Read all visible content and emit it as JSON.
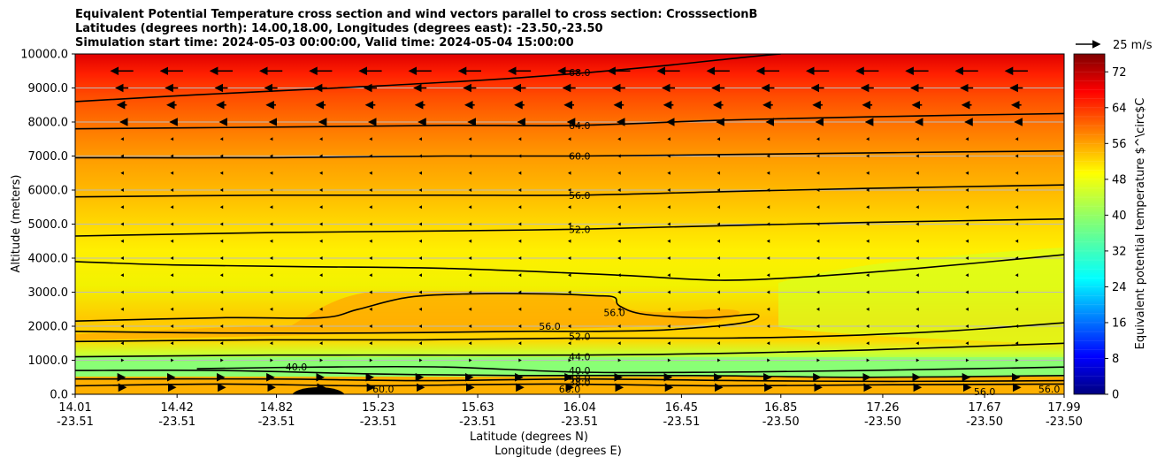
{
  "chart_data": {
    "type": "heatmap",
    "title_lines": [
      "Equivalent Potential Temperature cross section and wind vectors parallel to cross section: CrosssectionB",
      "Latitudes (degrees north): 14.00,18.00, Longitudes (degrees east): -23.50,-23.50",
      "Simulation start time: 2024-05-03 00:00:00, Valid time: 2024-05-04 15:00:00"
    ],
    "xlabel_lat": "Latitude (degrees N)",
    "xlabel_lon": "Longitude (degrees E)",
    "ylabel": "Altitude (meters)",
    "xlim": [
      14.01,
      17.99
    ],
    "ylim": [
      0,
      10000
    ],
    "x_ticks": [
      {
        "x": 14.01,
        "lat": "14.01",
        "lon": "-23.51"
      },
      {
        "x": 14.42,
        "lat": "14.42",
        "lon": "-23.51"
      },
      {
        "x": 14.82,
        "lat": "14.82",
        "lon": "-23.51"
      },
      {
        "x": 15.23,
        "lat": "15.23",
        "lon": "-23.51"
      },
      {
        "x": 15.63,
        "lat": "15.63",
        "lon": "-23.51"
      },
      {
        "x": 16.04,
        "lat": "16.04",
        "lon": "-23.51"
      },
      {
        "x": 16.45,
        "lat": "16.45",
        "lon": "-23.51"
      },
      {
        "x": 16.85,
        "lat": "16.85",
        "lon": "-23.50"
      },
      {
        "x": 17.26,
        "lat": "17.26",
        "lon": "-23.50"
      },
      {
        "x": 17.67,
        "lat": "17.67",
        "lon": "-23.50"
      },
      {
        "x": 17.99,
        "lat": "17.99",
        "lon": "-23.50"
      }
    ],
    "y_ticks": [
      {
        "v": 0,
        "label": "0.0"
      },
      {
        "v": 1000,
        "label": "1000.0"
      },
      {
        "v": 2000,
        "label": "2000.0"
      },
      {
        "v": 3000,
        "label": "3000.0"
      },
      {
        "v": 4000,
        "label": "4000.0"
      },
      {
        "v": 5000,
        "label": "5000.0"
      },
      {
        "v": 6000,
        "label": "6000.0"
      },
      {
        "v": 7000,
        "label": "7000.0"
      },
      {
        "v": 8000,
        "label": "8000.0"
      },
      {
        "v": 9000,
        "label": "9000.0"
      },
      {
        "v": 10000,
        "label": "10000.0"
      }
    ],
    "grid": "horizontal",
    "colorbar": {
      "label": "Equivalent potential temperature $^\\circ$C",
      "min": 0,
      "max": 76,
      "ticks": [
        0,
        8,
        16,
        24,
        32,
        40,
        48,
        56,
        64,
        72
      ],
      "colormap": "jet",
      "levels": 38
    },
    "wind_key": {
      "label": "25 m/s",
      "speed": 25
    },
    "contours": [
      {
        "level": "68.0",
        "label": "68.0",
        "points": [
          [
            14.01,
            8600
          ],
          [
            14.5,
            8800
          ],
          [
            15.2,
            9050
          ],
          [
            15.8,
            9300
          ],
          [
            16.3,
            9600
          ],
          [
            16.7,
            9900
          ],
          [
            16.85,
            10000
          ]
        ]
      },
      {
        "level": "64.0",
        "label": "64.0",
        "points": [
          [
            14.01,
            7800
          ],
          [
            14.8,
            7850
          ],
          [
            15.5,
            7900
          ],
          [
            16.04,
            7900
          ],
          [
            16.6,
            8050
          ],
          [
            17.2,
            8150
          ],
          [
            17.99,
            8250
          ]
        ]
      },
      {
        "level": "60.0",
        "label": "60.0",
        "points": [
          [
            14.01,
            6950
          ],
          [
            14.8,
            6950
          ],
          [
            15.5,
            7000
          ],
          [
            16.04,
            7000
          ],
          [
            16.7,
            7050
          ],
          [
            17.3,
            7100
          ],
          [
            17.99,
            7150
          ]
        ]
      },
      {
        "level": "56.0",
        "label": "56.0",
        "points": [
          [
            14.01,
            5800
          ],
          [
            14.8,
            5850
          ],
          [
            15.5,
            5850
          ],
          [
            16.04,
            5850
          ],
          [
            16.6,
            5950
          ],
          [
            17.2,
            6050
          ],
          [
            17.99,
            6150
          ]
        ]
      },
      {
        "level": "52.0",
        "label": "52.0",
        "points": [
          [
            14.01,
            4650
          ],
          [
            14.8,
            4750
          ],
          [
            15.5,
            4800
          ],
          [
            16.04,
            4850
          ],
          [
            16.6,
            4950
          ],
          [
            17.2,
            5050
          ],
          [
            17.99,
            5150
          ]
        ]
      },
      {
        "level": "48.0",
        "label": "",
        "points": [
          [
            14.01,
            3900
          ],
          [
            14.4,
            3800
          ],
          [
            14.9,
            3750
          ],
          [
            15.5,
            3700
          ],
          [
            16.2,
            3500
          ],
          [
            16.6,
            3350
          ],
          [
            16.95,
            3450
          ],
          [
            17.4,
            3700
          ],
          [
            17.99,
            4100
          ]
        ]
      },
      {
        "level": "56.0",
        "label": "56.0",
        "points": [
          [
            14.01,
            2150
          ],
          [
            14.6,
            2250
          ],
          [
            15.0,
            2250
          ],
          [
            15.15,
            2500
          ],
          [
            15.35,
            2850
          ],
          [
            15.6,
            2950
          ],
          [
            15.9,
            2950
          ],
          [
            16.1,
            2900
          ],
          [
            16.18,
            2850
          ],
          [
            16.2,
            2600
          ],
          [
            16.3,
            2350
          ],
          [
            16.55,
            2250
          ],
          [
            16.75,
            2350
          ],
          [
            16.7,
            2100
          ],
          [
            16.4,
            1900
          ],
          [
            16.1,
            1850
          ],
          [
            15.8,
            1850
          ],
          [
            15.2,
            1800
          ],
          [
            14.6,
            1800
          ],
          [
            14.01,
            1850
          ]
        ]
      },
      {
        "level": "52.0",
        "label": "52.0",
        "points": [
          [
            14.01,
            1550
          ],
          [
            14.8,
            1600
          ],
          [
            15.4,
            1600
          ],
          [
            16.04,
            1650
          ],
          [
            16.6,
            1650
          ],
          [
            17.0,
            1700
          ],
          [
            17.5,
            1850
          ],
          [
            17.99,
            2100
          ]
        ]
      },
      {
        "level": "44.0",
        "label": "44.0",
        "points": [
          [
            14.01,
            1100
          ],
          [
            14.8,
            1150
          ],
          [
            15.4,
            1150
          ],
          [
            16.04,
            1150
          ],
          [
            16.6,
            1200
          ],
          [
            17.2,
            1300
          ],
          [
            17.99,
            1500
          ]
        ]
      },
      {
        "level": "40.0",
        "label": "40.0",
        "points": [
          [
            14.5,
            750
          ],
          [
            15.0,
            800
          ],
          [
            15.5,
            800
          ],
          [
            16.04,
            650
          ],
          [
            16.6,
            650
          ],
          [
            17.2,
            700
          ],
          [
            17.99,
            800
          ]
        ]
      },
      {
        "level": "40.0",
        "label": "40.0",
        "points": [
          [
            14.01,
            700
          ],
          [
            14.6,
            700
          ],
          [
            15.2,
            600
          ],
          [
            15.8,
            550
          ],
          [
            16.5,
            550
          ],
          [
            17.2,
            500
          ],
          [
            17.99,
            550
          ]
        ]
      },
      {
        "level": "48.0",
        "label": "48.0",
        "points": [
          [
            14.01,
            450
          ],
          [
            14.8,
            450
          ],
          [
            15.4,
            400
          ],
          [
            16.04,
            450
          ],
          [
            16.7,
            400
          ],
          [
            17.3,
            380
          ],
          [
            17.99,
            400
          ]
        ]
      },
      {
        "level": "56.0",
        "label": "56.0",
        "points": [
          [
            14.01,
            250
          ],
          [
            14.6,
            300
          ],
          [
            15.2,
            250
          ],
          [
            15.9,
            300
          ],
          [
            16.6,
            250
          ],
          [
            17.3,
            280
          ],
          [
            17.99,
            300
          ]
        ]
      }
    ],
    "contour_labels": [
      {
        "text": "68.0",
        "x": 16.04,
        "y": 9450
      },
      {
        "text": "64.0",
        "x": 16.04,
        "y": 7900
      },
      {
        "text": "60.0",
        "x": 16.04,
        "y": 7000
      },
      {
        "text": "56.0",
        "x": 16.04,
        "y": 5850
      },
      {
        "text": "52.0",
        "x": 16.04,
        "y": 4850
      },
      {
        "text": "56.0",
        "x": 16.18,
        "y": 2400
      },
      {
        "text": "56.0",
        "x": 15.92,
        "y": 2000
      },
      {
        "text": "52.0",
        "x": 16.04,
        "y": 1700
      },
      {
        "text": "44.0",
        "x": 16.04,
        "y": 1100
      },
      {
        "text": "40.0",
        "x": 14.9,
        "y": 800
      },
      {
        "text": "40.0",
        "x": 16.04,
        "y": 700
      },
      {
        "text": "48.0",
        "x": 16.04,
        "y": 480
      },
      {
        "text": "38.0",
        "x": 16.04,
        "y": 350
      },
      {
        "text": "60.0",
        "x": 16.0,
        "y": 150
      },
      {
        "text": "60.0",
        "x": 15.25,
        "y": 150
      },
      {
        "text": "56.0",
        "x": 17.67,
        "y": 80
      },
      {
        "text": "56.0",
        "x": 17.93,
        "y": 150
      }
    ],
    "wind_rows_m": [
      9500,
      9000,
      8500,
      8000,
      7500,
      7000,
      6500,
      6000,
      5500,
      5000,
      4500,
      4000,
      3500,
      3000,
      2500,
      2000,
      1500,
      1000,
      500,
      200
    ],
    "wind_cols_deg": [
      14.2,
      14.4,
      14.6,
      14.8,
      15.0,
      15.2,
      15.4,
      15.6,
      15.8,
      16.0,
      16.2,
      16.4,
      16.6,
      16.8,
      17.0,
      17.2,
      17.4,
      17.6,
      17.8
    ],
    "wind_speed_by_row_ms": [
      -22,
      -12,
      -9,
      -3,
      -1.5,
      -1,
      -1,
      -1,
      -1,
      -1,
      -1,
      -1,
      -1,
      -1,
      -1.5,
      -1.5,
      -1,
      0.5,
      4,
      6
    ]
  }
}
